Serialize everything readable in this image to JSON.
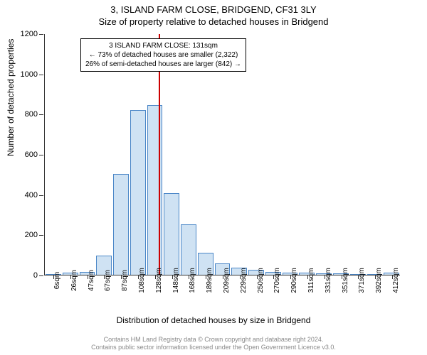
{
  "header": {
    "address": "3, ISLAND FARM CLOSE, BRIDGEND, CF31 3LY",
    "subtitle": "Size of property relative to detached houses in Bridgend"
  },
  "ylabel": "Number of detached properties",
  "xlabel": "Distribution of detached houses by size in Bridgend",
  "chart": {
    "type": "histogram",
    "bar_fill": "#cfe2f3",
    "bar_stroke": "#4a86c7",
    "marker_color": "#cc0000",
    "background_color": "#ffffff",
    "ylim_max": 1200,
    "ytick_step": 200,
    "yticks": [
      0,
      200,
      400,
      600,
      800,
      1000,
      1200
    ],
    "xtick_labels": [
      "6sqm",
      "26sqm",
      "47sqm",
      "67sqm",
      "87sqm",
      "108sqm",
      "128sqm",
      "148sqm",
      "168sqm",
      "189sqm",
      "209sqm",
      "229sqm",
      "250sqm",
      "270sqm",
      "290sqm",
      "311sqm",
      "331sqm",
      "351sqm",
      "371sqm",
      "392sqm",
      "412sqm"
    ],
    "values": [
      0,
      10,
      15,
      95,
      500,
      820,
      845,
      405,
      250,
      110,
      55,
      35,
      25,
      15,
      12,
      10,
      8,
      6,
      5,
      4,
      10
    ],
    "marker_bin_index": 6
  },
  "info_box": {
    "line1": "3 ISLAND FARM CLOSE: 131sqm",
    "line2": "← 73% of detached houses are smaller (2,322)",
    "line3": "26% of semi-detached houses are larger (842) →"
  },
  "footer": {
    "line1": "Contains HM Land Registry data © Crown copyright and database right 2024.",
    "line2": "Contains public sector information licensed under the Open Government Licence v3.0."
  }
}
